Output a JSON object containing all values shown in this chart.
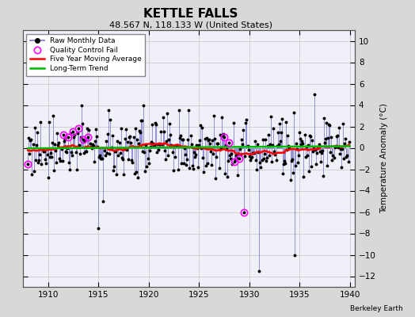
{
  "title": "KETTLE FALLS",
  "subtitle": "48.567 N, 118.133 W (United States)",
  "ylabel_right": "Temperature Anomaly (°C)",
  "attribution": "Berkeley Earth",
  "xlim": [
    1907.5,
    1940.5
  ],
  "ylim": [
    -13,
    11
  ],
  "yticks": [
    -12,
    -10,
    -8,
    -6,
    -4,
    -2,
    0,
    2,
    4,
    6,
    8,
    10
  ],
  "xticks": [
    1910,
    1915,
    1920,
    1925,
    1930,
    1935,
    1940
  ],
  "fig_bg_color": "#d8d8d8",
  "plot_bg_color": "#f0f0f8",
  "raw_line_color": "#7777cc",
  "raw_dot_color": "#000000",
  "qc_color": "#ff00ff",
  "moving_avg_color": "#ff0000",
  "trend_color": "#00bb00",
  "grid_color": "#cccccc"
}
